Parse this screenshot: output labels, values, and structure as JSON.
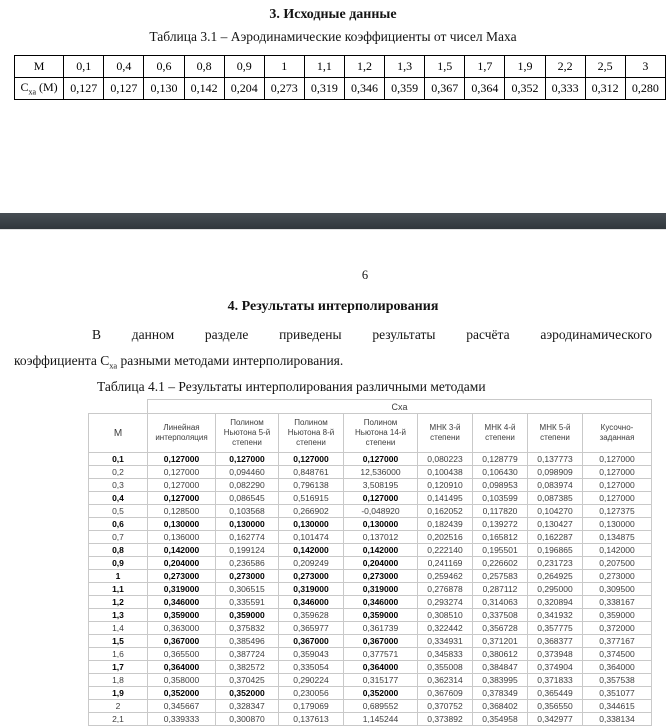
{
  "page1": {
    "title": "3. Исходные данные",
    "caption": "Таблица 3.1 – Аэродинамические коэффициенты от чисел Маха",
    "table31": {
      "m_label": "М",
      "cxa_label": {
        "base": "С",
        "sub": "ха",
        "rest": " (М)"
      },
      "mach": [
        "0,1",
        "0,4",
        "0,6",
        "0,8",
        "0,9",
        "1",
        "1,1",
        "1,2",
        "1,3",
        "1,5",
        "1,7",
        "1,9",
        "2,2",
        "2,5",
        "3"
      ],
      "cxa": [
        "0,127",
        "0,127",
        "0,130",
        "0,142",
        "0,204",
        "0,273",
        "0,319",
        "0,346",
        "0,359",
        "0,367",
        "0,364",
        "0,352",
        "0,333",
        "0,312",
        "0,280"
      ]
    }
  },
  "page2": {
    "page_number": "6",
    "heading": "4. Результаты интерполирования",
    "paragraph": {
      "line1": "В данном разделе приведены результаты расчёта аэродинамического",
      "line2_base": "коэффициента С",
      "line2_sub": "ха",
      "line2_rest": " разными методами интерполирования."
    },
    "caption": "Таблица 4.1 – Результаты интерполирования различными методами",
    "table41": {
      "m_header": "М",
      "group_header": "Сха",
      "col_headers": [
        "Линейная\nинтерполяция",
        "Полином\nНьютона 5-й\nстепени",
        "Полином\nНьютона 8-й\nстепени",
        "Полином\nНьютона 14-й\nстепени",
        "МНК 3-й\nстепени",
        "МНК 4-й\nстепени",
        "МНК 5-й\nстепени",
        "Кусочно-\nзаданная"
      ],
      "rows": [
        {
          "m": "0,1",
          "bm": 1,
          "cells": [
            "0,127000",
            "0,127000",
            "0,127000",
            "0,127000",
            "0,080223",
            "0,128779",
            "0,137773",
            "0,127000"
          ],
          "bold": [
            1,
            1,
            1,
            1,
            0,
            0,
            0,
            0
          ]
        },
        {
          "m": "0,2",
          "bm": 0,
          "cells": [
            "0,127000",
            "0,094460",
            "0,848761",
            "12,536000",
            "0,100438",
            "0,106430",
            "0,098909",
            "0,127000"
          ],
          "bold": [
            0,
            0,
            0,
            0,
            0,
            0,
            0,
            0
          ]
        },
        {
          "m": "0,3",
          "bm": 0,
          "cells": [
            "0,127000",
            "0,082290",
            "0,796138",
            "3,508195",
            "0,120910",
            "0,098953",
            "0,083974",
            "0,127000"
          ],
          "bold": [
            0,
            0,
            0,
            0,
            0,
            0,
            0,
            0
          ]
        },
        {
          "m": "0,4",
          "bm": 1,
          "cells": [
            "0,127000",
            "0,086545",
            "0,516915",
            "0,127000",
            "0,141495",
            "0,103599",
            "0,087385",
            "0,127000"
          ],
          "bold": [
            1,
            0,
            0,
            1,
            0,
            0,
            0,
            0
          ]
        },
        {
          "m": "0,5",
          "bm": 0,
          "cells": [
            "0,128500",
            "0,103568",
            "0,266902",
            "-0,048920",
            "0,162052",
            "0,117820",
            "0,104270",
            "0,127375"
          ],
          "bold": [
            0,
            0,
            0,
            0,
            0,
            0,
            0,
            0
          ]
        },
        {
          "m": "0,6",
          "bm": 1,
          "cells": [
            "0,130000",
            "0,130000",
            "0,130000",
            "0,130000",
            "0,182439",
            "0,139272",
            "0,130427",
            "0,130000"
          ],
          "bold": [
            1,
            1,
            1,
            1,
            0,
            0,
            0,
            0
          ]
        },
        {
          "m": "0,7",
          "bm": 0,
          "cells": [
            "0,136000",
            "0,162774",
            "0,101474",
            "0,137012",
            "0,202516",
            "0,165812",
            "0,162287",
            "0,134875"
          ],
          "bold": [
            0,
            0,
            0,
            0,
            0,
            0,
            0,
            0
          ]
        },
        {
          "m": "0,8",
          "bm": 1,
          "cells": [
            "0,142000",
            "0,199124",
            "0,142000",
            "0,142000",
            "0,222140",
            "0,195501",
            "0,196865",
            "0,142000"
          ],
          "bold": [
            1,
            0,
            1,
            1,
            0,
            0,
            0,
            0
          ]
        },
        {
          "m": "0,9",
          "bm": 1,
          "cells": [
            "0,204000",
            "0,236586",
            "0,209249",
            "0,204000",
            "0,241169",
            "0,226602",
            "0,231723",
            "0,207500"
          ],
          "bold": [
            1,
            0,
            0,
            1,
            0,
            0,
            0,
            0
          ]
        },
        {
          "m": "1",
          "bm": 1,
          "cells": [
            "0,273000",
            "0,273000",
            "0,273000",
            "0,273000",
            "0,259462",
            "0,257583",
            "0,264925",
            "0,273000"
          ],
          "bold": [
            1,
            1,
            1,
            1,
            0,
            0,
            0,
            0
          ]
        },
        {
          "m": "1,1",
          "bm": 1,
          "cells": [
            "0,319000",
            "0,306515",
            "0,319000",
            "0,319000",
            "0,276878",
            "0,287112",
            "0,295000",
            "0,309500"
          ],
          "bold": [
            1,
            0,
            1,
            1,
            0,
            0,
            0,
            0
          ]
        },
        {
          "m": "1,2",
          "bm": 1,
          "cells": [
            "0,346000",
            "0,335591",
            "0,346000",
            "0,346000",
            "0,293274",
            "0,314063",
            "0,320894",
            "0,338167"
          ],
          "bold": [
            1,
            0,
            1,
            1,
            0,
            0,
            0,
            0
          ]
        },
        {
          "m": "1,3",
          "bm": 1,
          "cells": [
            "0,359000",
            "0,359000",
            "0,359628",
            "0,359000",
            "0,308510",
            "0,337508",
            "0,341932",
            "0,359000"
          ],
          "bold": [
            1,
            1,
            0,
            1,
            0,
            0,
            0,
            0
          ]
        },
        {
          "m": "1,4",
          "bm": 0,
          "cells": [
            "0,363000",
            "0,375832",
            "0,365977",
            "0,361739",
            "0,322442",
            "0,356728",
            "0,357775",
            "0,372000"
          ],
          "bold": [
            0,
            0,
            0,
            0,
            0,
            0,
            0,
            0
          ]
        },
        {
          "m": "1,5",
          "bm": 1,
          "cells": [
            "0,367000",
            "0,385496",
            "0,367000",
            "0,367000",
            "0,334931",
            "0,371201",
            "0,368377",
            "0,377167"
          ],
          "bold": [
            1,
            0,
            1,
            1,
            0,
            0,
            0,
            0
          ]
        },
        {
          "m": "1,6",
          "bm": 0,
          "cells": [
            "0,365500",
            "0,387724",
            "0,359043",
            "0,377571",
            "0,345833",
            "0,380612",
            "0,373948",
            "0,374500"
          ],
          "bold": [
            0,
            0,
            0,
            0,
            0,
            0,
            0,
            0
          ]
        },
        {
          "m": "1,7",
          "bm": 1,
          "cells": [
            "0,364000",
            "0,382572",
            "0,335054",
            "0,364000",
            "0,355008",
            "0,384847",
            "0,374904",
            "0,364000"
          ],
          "bold": [
            1,
            0,
            0,
            1,
            0,
            0,
            0,
            0
          ]
        },
        {
          "m": "1,8",
          "bm": 0,
          "cells": [
            "0,358000",
            "0,370425",
            "0,290224",
            "0,315177",
            "0,362314",
            "0,383995",
            "0,371833",
            "0,357538"
          ],
          "bold": [
            0,
            0,
            0,
            0,
            0,
            0,
            0,
            0
          ]
        },
        {
          "m": "1,9",
          "bm": 1,
          "cells": [
            "0,352000",
            "0,352000",
            "0,230056",
            "0,352000",
            "0,367609",
            "0,378349",
            "0,365449",
            "0,351077"
          ],
          "bold": [
            1,
            1,
            0,
            1,
            0,
            0,
            0,
            0
          ]
        },
        {
          "m": "2",
          "bm": 0,
          "cells": [
            "0,345667",
            "0,328347",
            "0,179069",
            "0,689552",
            "0,370752",
            "0,368402",
            "0,356550",
            "0,344615"
          ],
          "bold": [
            0,
            0,
            0,
            0,
            0,
            0,
            0,
            0
          ]
        },
        {
          "m": "2,1",
          "bm": 0,
          "cells": [
            "0,339333",
            "0,300870",
            "0,137613",
            "1,145244",
            "0,373892",
            "0,354958",
            "0,342977",
            "0,338134"
          ],
          "bold": [
            0,
            0,
            0,
            0,
            0,
            0,
            0,
            0
          ]
        }
      ]
    }
  }
}
